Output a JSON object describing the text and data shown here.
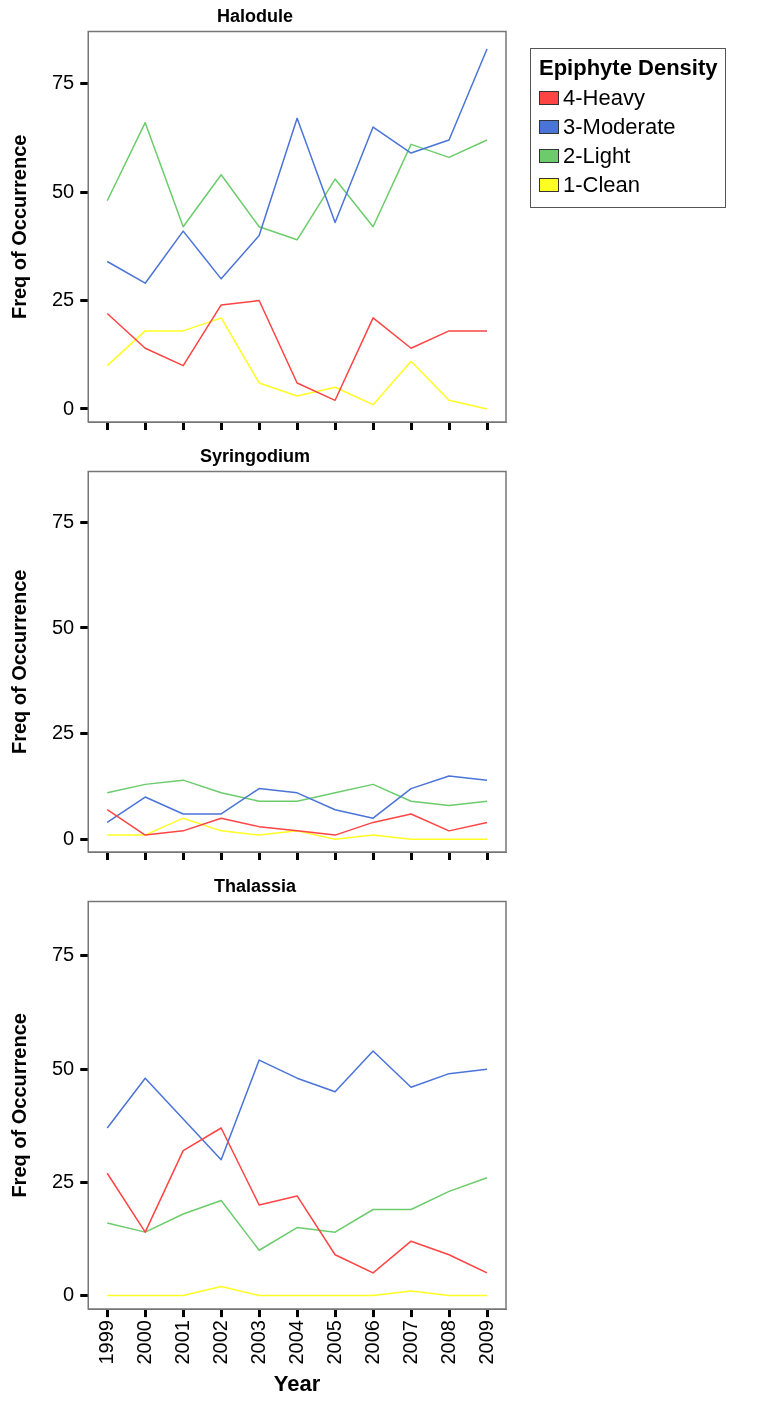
{
  "chart_data": [
    {
      "type": "line",
      "title": "Halodule",
      "ylabel": "Freq of Occurrence",
      "legend_title": "Epiphyte Density",
      "legend": "right",
      "grid": false,
      "tick_labels": "y",
      "categories": [
        "1999",
        "2000",
        "2001",
        "2002",
        "2003",
        "2004",
        "2005",
        "2006",
        "2007",
        "2008",
        "2009"
      ],
      "ylim": [
        -3,
        87
      ],
      "yticks": [
        0,
        25,
        50,
        75
      ],
      "series": [
        {
          "name": "4-Heavy",
          "color": "#ff4444",
          "values": [
            22,
            14,
            10,
            24,
            25,
            6,
            2,
            21,
            14,
            18,
            18
          ]
        },
        {
          "name": "3-Moderate",
          "color": "#4a74d8",
          "values": [
            34,
            29,
            41,
            30,
            40,
            67,
            43,
            65,
            59,
            62,
            83
          ]
        },
        {
          "name": "2-Light",
          "color": "#6ccc6c",
          "values": [
            48,
            66,
            42,
            54,
            42,
            39,
            53,
            42,
            61,
            58,
            62
          ]
        },
        {
          "name": "1-Clean",
          "color": "#ffff22",
          "values": [
            10,
            18,
            18,
            21,
            6,
            3,
            5,
            1,
            11,
            2,
            0
          ]
        }
      ]
    },
    {
      "type": "line",
      "title": "Syringodium",
      "ylabel": "Freq of Occurrence",
      "grid": false,
      "tick_labels": "y",
      "categories": [
        "1999",
        "2000",
        "2001",
        "2002",
        "2003",
        "2004",
        "2005",
        "2006",
        "2007",
        "2008",
        "2009"
      ],
      "ylim": [
        -3,
        87
      ],
      "yticks": [
        0,
        25,
        50,
        75
      ],
      "series": [
        {
          "color": "#ff4444",
          "values": [
            7,
            1,
            2,
            5,
            3,
            2,
            1,
            4,
            6,
            2,
            4
          ]
        },
        {
          "color": "#4a74d8",
          "values": [
            4,
            10,
            6,
            6,
            12,
            11,
            7,
            5,
            12,
            15,
            14
          ]
        },
        {
          "color": "#6ccc6c",
          "values": [
            11,
            13,
            14,
            11,
            9,
            9,
            11,
            13,
            9,
            8,
            9
          ]
        },
        {
          "color": "#ffff22",
          "values": [
            1,
            1,
            5,
            2,
            1,
            2,
            0,
            1,
            0,
            0,
            0
          ]
        }
      ]
    },
    {
      "type": "line",
      "title": "Thalassia",
      "xlabel": "Year",
      "ylabel": "Freq of Occurrence",
      "grid": false,
      "categories": [
        "1999",
        "2000",
        "2001",
        "2002",
        "2003",
        "2004",
        "2005",
        "2006",
        "2007",
        "2008",
        "2009"
      ],
      "ylim": [
        -3,
        87
      ],
      "yticks": [
        0,
        25,
        50,
        75
      ],
      "series": [
        {
          "color": "#ff4444",
          "values": [
            27,
            14,
            32,
            37,
            20,
            22,
            9,
            5,
            12,
            9,
            5
          ]
        },
        {
          "color": "#4a74d8",
          "values": [
            37,
            48,
            39,
            30,
            52,
            48,
            45,
            54,
            46,
            49,
            50
          ]
        },
        {
          "color": "#6ccc6c",
          "values": [
            16,
            14,
            18,
            21,
            10,
            15,
            14,
            19,
            19,
            23,
            26
          ]
        },
        {
          "color": "#ffff22",
          "values": [
            0,
            0,
            0,
            2,
            0,
            0,
            0,
            0,
            1,
            0,
            0
          ]
        }
      ]
    }
  ]
}
